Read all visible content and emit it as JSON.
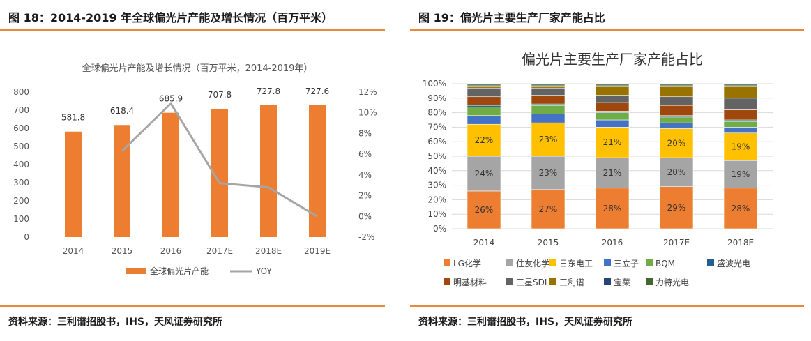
{
  "colors": {
    "accent": "#e8883d",
    "bar": "#ed7d31",
    "yoy": "#a5a5a5"
  },
  "panel1": {
    "heading": "图 18：2014-2019 年全球偏光片产能及增长情况（百万平米）",
    "source": "资料来源：三利谱招股书，IHS，天风证券研究所"
  },
  "panel2": {
    "heading": "图 19：偏光片主要生产厂家产能占比",
    "source": "资料来源：三利谱招股书，IHS，天风证券研究所"
  },
  "chart_data": [
    {
      "type": "bar",
      "title": "全球偏光片产能及增长情况（百万平米，2014-2019年）",
      "categories": [
        "2014",
        "2015",
        "2016",
        "2017E",
        "2018E",
        "2019E"
      ],
      "series": [
        {
          "name": "全球偏光片产能",
          "type": "bar",
          "values": [
            581.8,
            618.4,
            685.9,
            707.8,
            727.8,
            727.6
          ],
          "labels": [
            "581.8",
            "618.4",
            "685.9",
            "707.8",
            "727.8",
            "727.6"
          ]
        },
        {
          "name": "YOY",
          "type": "line",
          "axis": "right",
          "values": [
            null,
            6.3,
            10.9,
            3.2,
            2.8,
            0.0
          ]
        }
      ],
      "ylim": [
        0,
        800
      ],
      "yticks": [
        "0",
        "100",
        "200",
        "300",
        "400",
        "500",
        "600",
        "700",
        "800"
      ],
      "y2lim": [
        -2,
        12
      ],
      "y2ticks": [
        "-2%",
        "0%",
        "2%",
        "4%",
        "6%",
        "8%",
        "10%",
        "12%"
      ],
      "legend": "bottom",
      "grid": false
    },
    {
      "type": "bar",
      "stacked": true,
      "percent": true,
      "title": "偏光片主要生产厂家产能占比",
      "categories": [
        "2014",
        "2015",
        "2016",
        "2017E",
        "2018E"
      ],
      "yticks": [
        "0%",
        "10%",
        "20%",
        "30%",
        "40%",
        "50%",
        "60%",
        "70%",
        "80%",
        "90%",
        "100%"
      ],
      "series": [
        {
          "name": "LG化学",
          "color": "#ed7d31",
          "values": [
            26,
            27,
            28,
            29,
            28
          ],
          "labels": [
            "26%",
            "27%",
            "28%",
            "29%",
            "28%"
          ]
        },
        {
          "name": "住友化学",
          "color": "#a5a5a5",
          "values": [
            24,
            23,
            21,
            20,
            19
          ],
          "labels": [
            "24%",
            "23%",
            "21%",
            "20%",
            "19%"
          ]
        },
        {
          "name": "日东电工",
          "color": "#ffc000",
          "values": [
            22,
            23,
            21,
            20,
            19
          ],
          "labels": [
            "22%",
            "23%",
            "21%",
            "20%",
            "19%"
          ]
        },
        {
          "name": "三立子",
          "color": "#4472c4",
          "values": [
            6,
            6,
            5,
            4,
            4
          ],
          "labels": []
        },
        {
          "name": "BQM",
          "color": "#70ad47",
          "values": [
            6,
            6,
            5,
            4,
            4
          ],
          "labels": []
        },
        {
          "name": "盛波光电",
          "color": "#255e91",
          "values": [
            1,
            1,
            1,
            1,
            1
          ],
          "labels": []
        },
        {
          "name": "明基材料",
          "color": "#9e480e",
          "values": [
            6,
            6,
            6,
            7,
            7
          ],
          "labels": []
        },
        {
          "name": "三星SDI",
          "color": "#636363",
          "values": [
            6,
            5,
            5,
            6,
            8
          ],
          "labels": []
        },
        {
          "name": "三利谱",
          "color": "#997300",
          "values": [
            1,
            1,
            6,
            7,
            8
          ],
          "labels": []
        },
        {
          "name": "宝莱",
          "color": "#264478",
          "values": [
            1,
            1,
            1,
            1,
            1
          ],
          "labels": []
        },
        {
          "name": "力特光电",
          "color": "#43682b",
          "values": [
            1,
            1,
            1,
            1,
            1
          ],
          "labels": []
        }
      ],
      "legend": "bottom",
      "grid": true
    }
  ]
}
